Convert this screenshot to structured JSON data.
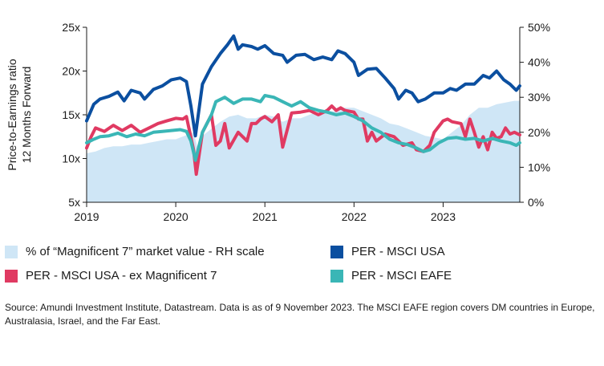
{
  "chart_data": {
    "type": "line",
    "title": "",
    "ylabel": "Price-to-Earnings ratio 12 Months Forward",
    "y_left": {
      "min": 5,
      "max": 25,
      "ticks": [
        "5x",
        "10x",
        "15x",
        "20x",
        "25x"
      ]
    },
    "y_right": {
      "min": 0,
      "max": 50,
      "ticks": [
        "0%",
        "10%",
        "20%",
        "30%",
        "40%",
        "50%"
      ]
    },
    "x_ticks": [
      "2019",
      "2020",
      "2021",
      "2022",
      "2023"
    ],
    "x_range": [
      2019.0,
      2023.86
    ],
    "series": [
      {
        "name": "% of “Magnificent 7” market value - RH scale",
        "type": "area",
        "axis": "right",
        "color": "#cfe6f6",
        "x": [
          2019.0,
          2019.1,
          2019.2,
          2019.3,
          2019.4,
          2019.5,
          2019.6,
          2019.7,
          2019.8,
          2019.9,
          2020.0,
          2020.1,
          2020.2,
          2020.25,
          2020.3,
          2020.4,
          2020.5,
          2020.6,
          2020.7,
          2020.8,
          2020.9,
          2021.0,
          2021.1,
          2021.2,
          2021.3,
          2021.4,
          2021.5,
          2021.6,
          2021.7,
          2021.8,
          2021.9,
          2022.0,
          2022.1,
          2022.2,
          2022.3,
          2022.4,
          2022.5,
          2022.6,
          2022.7,
          2022.8,
          2022.9,
          2023.0,
          2023.1,
          2023.2,
          2023.3,
          2023.4,
          2023.5,
          2023.6,
          2023.7,
          2023.8,
          2023.86
        ],
        "values": [
          14,
          14.5,
          15.5,
          16,
          16,
          16.5,
          16.5,
          17,
          17.5,
          18,
          18,
          19,
          20,
          15,
          19,
          21,
          23,
          24.5,
          25,
          24,
          24,
          25,
          24.5,
          23,
          24,
          24,
          25,
          26,
          26,
          26,
          27,
          27,
          26,
          25,
          24,
          22.5,
          22,
          21,
          20,
          19,
          18.5,
          18,
          20,
          22,
          25,
          27,
          27,
          28,
          28.5,
          29,
          29
        ]
      },
      {
        "name": "PER - MSCI USA",
        "axis": "left",
        "color": "#0b4fa0",
        "x": [
          2019.0,
          2019.08,
          2019.15,
          2019.25,
          2019.35,
          2019.42,
          2019.5,
          2019.6,
          2019.65,
          2019.75,
          2019.85,
          2019.95,
          2020.05,
          2020.12,
          2020.17,
          2020.22,
          2020.3,
          2020.4,
          2020.5,
          2020.58,
          2020.65,
          2020.7,
          2020.75,
          2020.85,
          2020.92,
          2021.0,
          2021.1,
          2021.2,
          2021.25,
          2021.35,
          2021.45,
          2021.55,
          2021.65,
          2021.75,
          2021.82,
          2021.9,
          2022.0,
          2022.05,
          2022.15,
          2022.25,
          2022.35,
          2022.45,
          2022.5,
          2022.58,
          2022.65,
          2022.72,
          2022.8,
          2022.9,
          2023.0,
          2023.08,
          2023.15,
          2023.25,
          2023.35,
          2023.45,
          2023.52,
          2023.6,
          2023.68,
          2023.75,
          2023.82,
          2023.86
        ],
        "values": [
          14.3,
          16.2,
          16.8,
          17.1,
          17.6,
          16.6,
          17.8,
          17.5,
          16.8,
          17.9,
          18.3,
          19.0,
          19.2,
          18.8,
          16.0,
          12.6,
          18.5,
          20.5,
          22.0,
          23.0,
          24.0,
          22.5,
          23.0,
          22.8,
          22.5,
          22.9,
          22.0,
          21.8,
          21.0,
          21.8,
          21.9,
          21.3,
          21.6,
          21.3,
          22.3,
          22.0,
          21.0,
          19.5,
          20.2,
          20.3,
          19.2,
          18.0,
          16.8,
          17.8,
          17.5,
          16.5,
          16.8,
          17.5,
          17.5,
          18.0,
          17.8,
          18.5,
          18.5,
          19.5,
          19.2,
          20.0,
          19.0,
          18.5,
          17.8,
          18.3
        ]
      },
      {
        "name": "PER - MSCI USA - ex Magnificent 7",
        "axis": "left",
        "color": "#e03a62",
        "x": [
          2019.0,
          2019.05,
          2019.1,
          2019.2,
          2019.3,
          2019.4,
          2019.5,
          2019.6,
          2019.7,
          2019.8,
          2019.9,
          2020.0,
          2020.08,
          2020.12,
          2020.2,
          2020.23,
          2020.3,
          2020.35,
          2020.4,
          2020.45,
          2020.5,
          2020.55,
          2020.6,
          2020.7,
          2020.8,
          2020.85,
          2020.9,
          2020.95,
          2021.0,
          2021.08,
          2021.15,
          2021.2,
          2021.3,
          2021.4,
          2021.5,
          2021.6,
          2021.7,
          2021.75,
          2021.8,
          2021.85,
          2021.9,
          2022.0,
          2022.05,
          2022.1,
          2022.15,
          2022.2,
          2022.25,
          2022.35,
          2022.45,
          2022.55,
          2022.65,
          2022.7,
          2022.78,
          2022.85,
          2022.9,
          2023.0,
          2023.05,
          2023.1,
          2023.2,
          2023.25,
          2023.3,
          2023.35,
          2023.4,
          2023.45,
          2023.5,
          2023.55,
          2023.6,
          2023.65,
          2023.7,
          2023.75,
          2023.8,
          2023.86
        ],
        "values": [
          11.2,
          12.5,
          13.5,
          13.1,
          13.8,
          13.2,
          13.8,
          13.0,
          13.5,
          14.0,
          14.3,
          14.6,
          14.5,
          14.8,
          11.0,
          8.2,
          13.0,
          14.0,
          15.0,
          11.5,
          12.0,
          14.0,
          11.2,
          13.0,
          12.0,
          14.0,
          14.0,
          14.5,
          14.8,
          14.2,
          15.0,
          11.3,
          15.2,
          15.3,
          15.5,
          15.0,
          15.5,
          16.0,
          15.5,
          15.8,
          15.5,
          15.3,
          14.5,
          14.5,
          12.0,
          13.0,
          12.0,
          12.8,
          12.5,
          11.5,
          11.8,
          11.0,
          10.8,
          11.5,
          13.0,
          14.3,
          14.5,
          14.2,
          14.0,
          12.5,
          14.5,
          13.0,
          11.3,
          12.5,
          11.0,
          13.0,
          12.3,
          12.5,
          13.5,
          12.8,
          13.0,
          12.7
        ]
      },
      {
        "name": "PER - MSCI EAFE",
        "axis": "left",
        "color": "#3ab6b6",
        "x": [
          2019.0,
          2019.08,
          2019.15,
          2019.25,
          2019.35,
          2019.45,
          2019.55,
          2019.65,
          2019.75,
          2019.85,
          2019.95,
          2020.05,
          2020.12,
          2020.17,
          2020.22,
          2020.3,
          2020.4,
          2020.45,
          2020.55,
          2020.65,
          2020.75,
          2020.85,
          2020.95,
          2021.0,
          2021.1,
          2021.2,
          2021.3,
          2021.4,
          2021.5,
          2021.6,
          2021.7,
          2021.8,
          2021.9,
          2022.0,
          2022.1,
          2022.2,
          2022.3,
          2022.4,
          2022.5,
          2022.6,
          2022.7,
          2022.78,
          2022.85,
          2022.95,
          2023.05,
          2023.15,
          2023.25,
          2023.35,
          2023.45,
          2023.55,
          2023.65,
          2023.75,
          2023.82,
          2023.86
        ],
        "values": [
          11.8,
          12.2,
          12.5,
          12.6,
          12.9,
          12.5,
          12.8,
          12.6,
          13.0,
          13.1,
          13.2,
          13.3,
          13.1,
          12.0,
          9.8,
          13.0,
          15.0,
          16.5,
          17.0,
          16.3,
          16.8,
          16.8,
          16.5,
          17.2,
          17.0,
          16.5,
          16.0,
          16.5,
          15.8,
          15.5,
          15.3,
          15.0,
          15.2,
          14.8,
          14.3,
          13.5,
          13.0,
          12.2,
          11.8,
          11.6,
          11.2,
          10.8,
          11.0,
          11.8,
          12.3,
          12.4,
          12.2,
          12.3,
          12.0,
          12.3,
          12.0,
          11.8,
          11.5,
          11.8
        ]
      }
    ]
  },
  "legend": [
    {
      "label": "% of “Magnificent 7” market value - RH scale",
      "color": "#cfe6f6"
    },
    {
      "label": "PER - MSCI USA",
      "color": "#0b4fa0"
    },
    {
      "label": "PER - MSCI USA - ex Magnificent 7",
      "color": "#e03a62"
    },
    {
      "label": "PER - MSCI EAFE",
      "color": "#3ab6b6"
    }
  ],
  "source": "Source: Amundi Investment Institute, Datastream. Data is as of 9 November 2023. The MSCI EAFE region covers DM countries in Europe, Australasia, Israel, and the Far East."
}
